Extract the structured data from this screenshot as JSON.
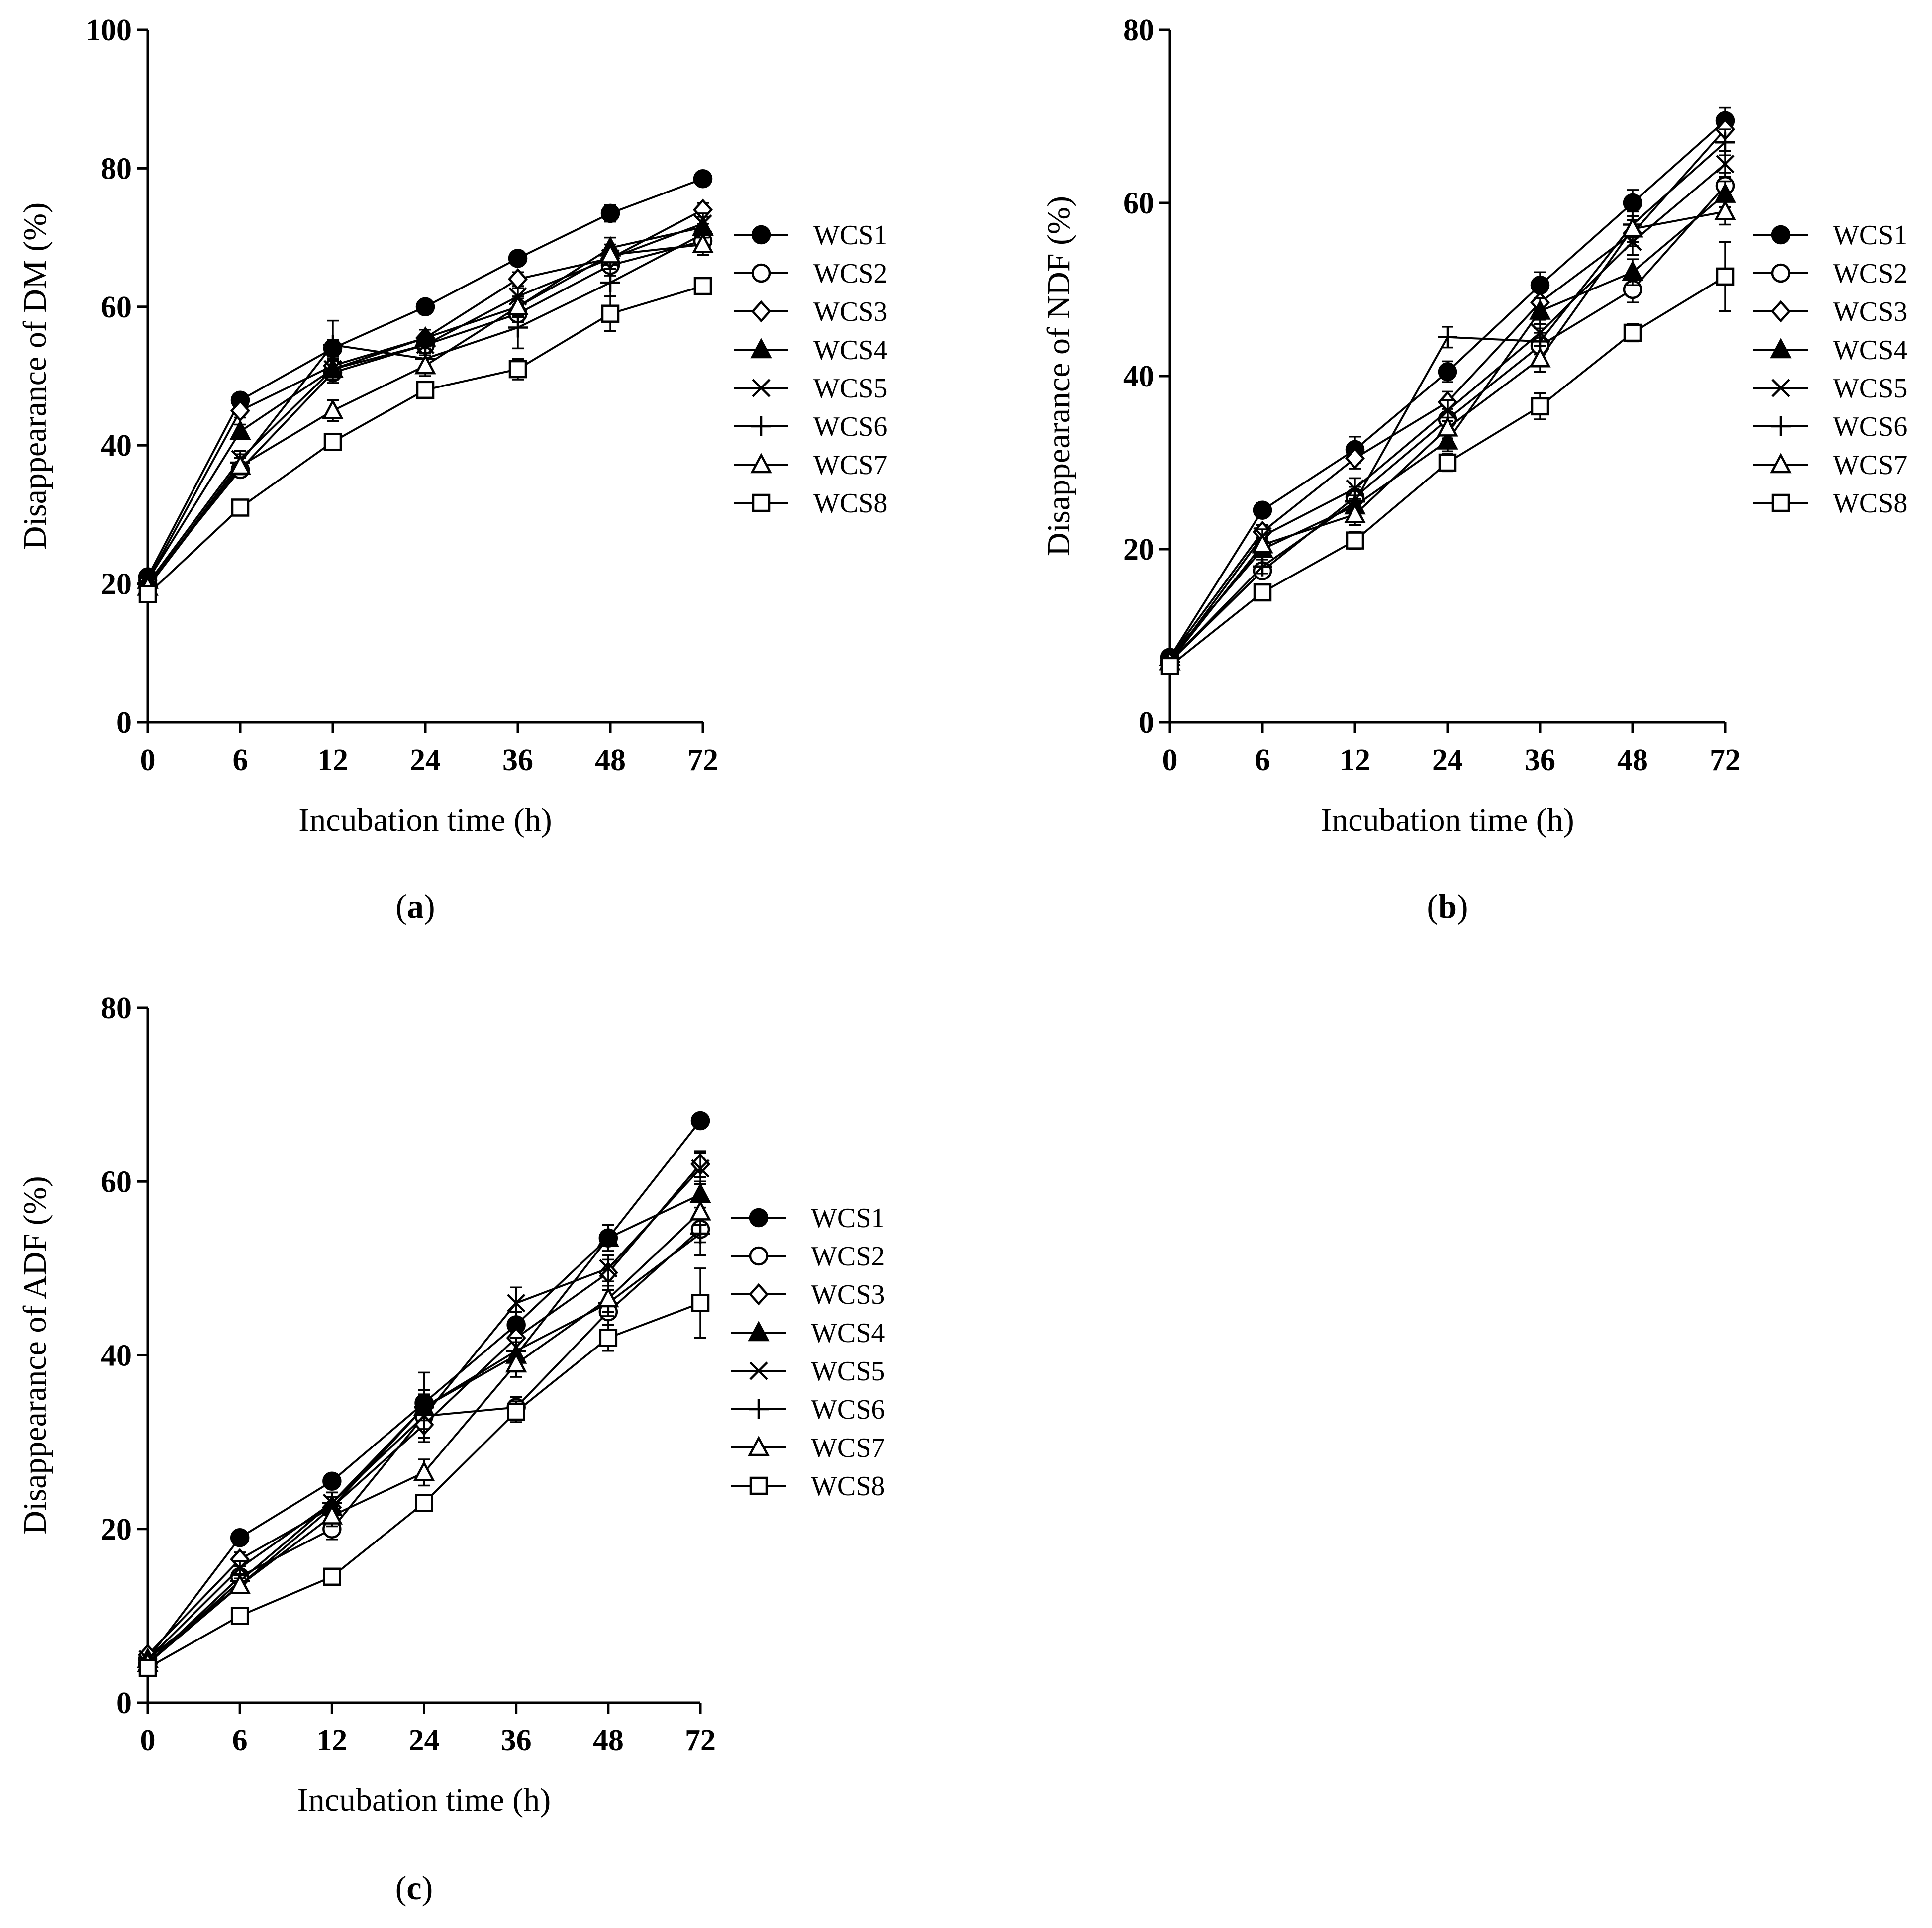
{
  "figure": {
    "colors": {
      "ink": "#000000",
      "background": "#ffffff"
    }
  },
  "chart_data": [
    {
      "type": "line",
      "panel_id": "a",
      "panel_label": "a",
      "title": "",
      "xlabel": "Incubation time (h)",
      "ylabel": "Disappearance of DM (%)",
      "categories": [
        "0",
        "6",
        "12",
        "24",
        "36",
        "48",
        "72"
      ],
      "ylim": [
        0,
        100
      ],
      "yticks": [
        0,
        20,
        40,
        60,
        80,
        100
      ],
      "grid": false,
      "legend_position": "right",
      "series": [
        {
          "name": "WCS1",
          "marker": "filled-circle",
          "values": [
            21.0,
            46.5,
            54.0,
            60.0,
            67.0,
            73.5,
            78.5
          ],
          "errors": [
            0.8,
            0.8,
            1.2,
            1.0,
            1.0,
            1.2,
            0.5
          ]
        },
        {
          "name": "WCS2",
          "marker": "open-circle",
          "values": [
            20.0,
            36.5,
            50.5,
            54.5,
            59.0,
            66.0,
            69.5
          ],
          "errors": [
            0.8,
            1.0,
            1.5,
            1.2,
            1.2,
            1.5,
            1.5
          ]
        },
        {
          "name": "WCS3",
          "marker": "open-diamond",
          "values": [
            20.5,
            45.0,
            51.5,
            55.5,
            64.0,
            67.0,
            74.0
          ],
          "errors": [
            0.8,
            1.0,
            1.5,
            1.2,
            1.0,
            1.5,
            1.0
          ]
        },
        {
          "name": "WCS4",
          "marker": "filled-triangle",
          "values": [
            20.5,
            42.0,
            51.0,
            55.5,
            60.0,
            68.5,
            71.5
          ],
          "errors": [
            0.8,
            1.0,
            1.2,
            1.2,
            1.2,
            1.5,
            1.5
          ]
        },
        {
          "name": "WCS5",
          "marker": "cross",
          "values": [
            20.0,
            38.0,
            51.0,
            54.5,
            61.5,
            67.0,
            72.0
          ],
          "errors": [
            0.8,
            1.2,
            1.5,
            1.2,
            1.2,
            1.5,
            1.5
          ]
        },
        {
          "name": "WCS6",
          "marker": "plus",
          "values": [
            19.5,
            37.5,
            54.5,
            52.5,
            57.0,
            63.5,
            70.5
          ],
          "errors": [
            0.8,
            1.2,
            3.5,
            1.5,
            3.0,
            2.0,
            1.5
          ]
        },
        {
          "name": "WCS7",
          "marker": "open-triangle",
          "values": [
            19.5,
            37.0,
            45.0,
            51.5,
            60.0,
            67.5,
            69.0
          ],
          "errors": [
            0.8,
            1.2,
            1.5,
            1.5,
            1.5,
            1.5,
            1.5
          ]
        },
        {
          "name": "WCS8",
          "marker": "open-square",
          "values": [
            18.5,
            31.0,
            40.5,
            48.0,
            51.0,
            59.0,
            63.0
          ],
          "errors": [
            0.8,
            0.8,
            1.0,
            1.0,
            1.5,
            2.5,
            0.8
          ]
        }
      ]
    },
    {
      "type": "line",
      "panel_id": "b",
      "panel_label": "b",
      "title": "",
      "xlabel": "Incubation time (h)",
      "ylabel": "Disappearance of NDF (%)",
      "categories": [
        "0",
        "6",
        "12",
        "24",
        "36",
        "48",
        "72"
      ],
      "ylim": [
        0,
        80
      ],
      "yticks": [
        0,
        20,
        40,
        60,
        80
      ],
      "grid": false,
      "legend_position": "right",
      "series": [
        {
          "name": "WCS1",
          "marker": "filled-circle",
          "values": [
            7.5,
            24.5,
            31.5,
            40.5,
            50.5,
            60.0,
            69.5
          ],
          "errors": [
            0.5,
            0.8,
            1.5,
            1.2,
            1.5,
            1.5,
            1.5
          ]
        },
        {
          "name": "WCS2",
          "marker": "open-circle",
          "values": [
            7.0,
            17.5,
            26.0,
            35.0,
            43.5,
            50.0,
            62.0
          ],
          "errors": [
            0.5,
            0.8,
            1.2,
            1.2,
            1.5,
            1.5,
            1.5
          ]
        },
        {
          "name": "WCS3",
          "marker": "open-diamond",
          "values": [
            7.5,
            22.0,
            30.5,
            37.0,
            48.5,
            56.5,
            68.5
          ],
          "errors": [
            0.5,
            0.8,
            1.2,
            1.2,
            1.5,
            1.5,
            1.5
          ]
        },
        {
          "name": "WCS4",
          "marker": "filled-triangle",
          "values": [
            7.5,
            20.0,
            25.0,
            32.5,
            47.5,
            52.0,
            61.0
          ],
          "errors": [
            0.5,
            0.8,
            1.2,
            1.2,
            1.5,
            1.5,
            1.5
          ]
        },
        {
          "name": "WCS5",
          "marker": "cross",
          "values": [
            7.0,
            21.5,
            27.0,
            36.0,
            45.0,
            55.5,
            64.5
          ],
          "errors": [
            0.5,
            0.8,
            1.2,
            1.2,
            1.5,
            1.5,
            1.5
          ]
        },
        {
          "name": "WCS6",
          "marker": "plus",
          "values": [
            7.0,
            18.0,
            25.5,
            44.5,
            44.0,
            57.5,
            67.0
          ],
          "errors": [
            0.5,
            0.8,
            1.2,
            1.2,
            1.5,
            1.5,
            1.5
          ]
        },
        {
          "name": "WCS7",
          "marker": "open-triangle",
          "values": [
            7.0,
            20.5,
            24.0,
            34.0,
            42.0,
            57.0,
            59.0
          ],
          "errors": [
            0.5,
            0.8,
            1.2,
            1.2,
            1.5,
            1.5,
            1.5
          ]
        },
        {
          "name": "WCS8",
          "marker": "open-square",
          "values": [
            6.5,
            15.0,
            21.0,
            30.0,
            36.5,
            45.0,
            51.5
          ],
          "errors": [
            0.5,
            0.8,
            1.0,
            1.0,
            1.5,
            1.0,
            4.0
          ]
        }
      ]
    },
    {
      "type": "line",
      "panel_id": "c",
      "panel_label": "c",
      "title": "",
      "xlabel": "Incubation time (h)",
      "ylabel": "Disappearance of ADF (%)",
      "categories": [
        "0",
        "6",
        "12",
        "24",
        "36",
        "48",
        "72"
      ],
      "ylim": [
        0,
        80
      ],
      "yticks": [
        0,
        20,
        40,
        60,
        80
      ],
      "grid": false,
      "legend_position": "right",
      "series": [
        {
          "name": "WCS1",
          "marker": "filled-circle",
          "values": [
            5.0,
            19.0,
            25.5,
            34.5,
            43.5,
            53.5,
            67.0
          ],
          "errors": [
            0.5,
            0.5,
            0.8,
            1.5,
            1.5,
            1.5,
            0.5
          ]
        },
        {
          "name": "WCS2",
          "marker": "open-circle",
          "values": [
            4.5,
            14.5,
            20.0,
            33.0,
            34.0,
            45.0,
            54.5
          ],
          "errors": [
            0.5,
            0.8,
            1.2,
            1.5,
            1.2,
            1.5,
            1.5
          ]
        },
        {
          "name": "WCS3",
          "marker": "open-diamond",
          "values": [
            5.5,
            16.5,
            22.5,
            32.0,
            42.0,
            49.5,
            62.0
          ],
          "errors": [
            0.5,
            0.8,
            1.2,
            1.5,
            1.5,
            1.5,
            1.5
          ]
        },
        {
          "name": "WCS4",
          "marker": "filled-triangle",
          "values": [
            5.0,
            13.5,
            22.5,
            34.0,
            40.0,
            53.5,
            58.5
          ],
          "errors": [
            0.5,
            0.8,
            1.2,
            1.5,
            1.5,
            1.5,
            1.5
          ]
        },
        {
          "name": "WCS5",
          "marker": "cross",
          "values": [
            5.0,
            15.5,
            23.0,
            33.0,
            46.0,
            50.0,
            61.5
          ],
          "errors": [
            0.5,
            0.8,
            1.2,
            1.5,
            1.8,
            1.5,
            1.8
          ]
        },
        {
          "name": "WCS6",
          "marker": "plus",
          "values": [
            4.5,
            14.0,
            23.0,
            34.0,
            40.5,
            46.0,
            54.0
          ],
          "errors": [
            0.5,
            0.8,
            1.2,
            4.0,
            1.5,
            1.5,
            2.5
          ]
        },
        {
          "name": "WCS7",
          "marker": "open-triangle",
          "values": [
            4.5,
            13.5,
            21.5,
            26.5,
            39.0,
            46.5,
            56.5
          ],
          "errors": [
            0.5,
            0.8,
            1.2,
            1.5,
            1.5,
            1.5,
            1.5
          ]
        },
        {
          "name": "WCS8",
          "marker": "open-square",
          "values": [
            4.0,
            10.0,
            14.5,
            23.0,
            33.5,
            42.0,
            46.0
          ],
          "errors": [
            0.5,
            0.5,
            0.8,
            0.8,
            1.2,
            1.5,
            4.0
          ]
        }
      ]
    }
  ]
}
